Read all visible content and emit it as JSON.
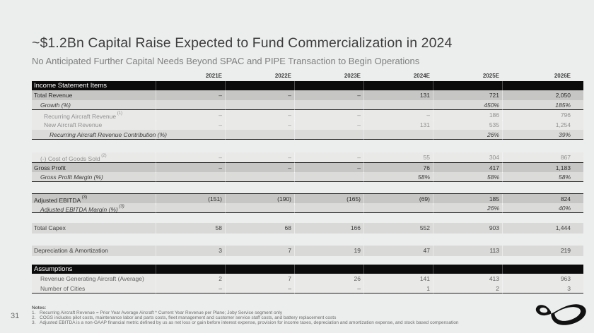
{
  "page_number": "31",
  "title": "~$1.2Bn Capital Raise Expected to Fund Commercialization in 2024",
  "subtitle": "No Anticipated Further Capital Needs Beyond SPAC and PIPE Transaction to Begin Operations",
  "colors": {
    "background": "#ECEEED",
    "section_bar": "#0B0B0B",
    "row_subtotal": "#C6C7C5",
    "row_percent": "#DBDCDA",
    "row_detail": "#E9EAE8",
    "row_plain": "#D9DAD8"
  },
  "table": {
    "column_headers": [
      "2021E",
      "2022E",
      "2023E",
      "2024E",
      "2025E",
      "2026E"
    ],
    "sections": [
      {
        "header": "Income Statement Items",
        "rows": [
          {
            "label": "Total Revenue",
            "sup": "",
            "values": [
              "–",
              "–",
              "–",
              "131",
              "721",
              "2,050"
            ],
            "style": "total",
            "indent": 0
          },
          {
            "label": "Growth (%)",
            "sup": "",
            "values": [
              "",
              "",
              "",
              "",
              "450%",
              "185%"
            ],
            "style": "pct",
            "indent": 1,
            "border_bottom": true
          },
          {
            "label": "Recurring Aircraft Revenue",
            "sup": "(1)",
            "values": [
              "–",
              "–",
              "–",
              "–",
              "186",
              "796"
            ],
            "style": "detail",
            "indent": 2
          },
          {
            "label": "New Aircraft Revenue",
            "sup": "",
            "values": [
              "–",
              "–",
              "–",
              "131",
              "535",
              "1,254"
            ],
            "style": "detail",
            "indent": 2
          },
          {
            "label": "Recurring Aircraft Revenue Contribution (%)",
            "sup": "",
            "values": [
              "",
              "",
              "",
              "",
              "26%",
              "39%"
            ],
            "style": "pct",
            "indent": 3,
            "border_bottom": true
          },
          {
            "spacer": true
          },
          {
            "label": "(-) Cost of Goods Sold",
            "sup": "(2)",
            "values": [
              "–",
              "–",
              "–",
              "55",
              "304",
              "867"
            ],
            "style": "detail",
            "indent": 1
          },
          {
            "label": "Gross Profit",
            "sup": "",
            "values": [
              "–",
              "–",
              "–",
              "76",
              "417",
              "1,183"
            ],
            "style": "total",
            "indent": 0,
            "border_top": true
          },
          {
            "label": "Gross Profit Margin (%)",
            "sup": "",
            "values": [
              "",
              "",
              "",
              "58%",
              "58%",
              "58%"
            ],
            "style": "pct",
            "indent": 1,
            "border_bottom": true
          },
          {
            "spacer": true
          },
          {
            "label": "Adjusted EBITDA",
            "sup": "(3)",
            "values": [
              "(151)",
              "(190)",
              "(165)",
              "(69)",
              "185",
              "824"
            ],
            "style": "total",
            "indent": 0,
            "border_top": true
          },
          {
            "label": "Adjusted EBITDA Margin (%)",
            "sup": "(3)",
            "values": [
              "",
              "",
              "",
              "",
              "26%",
              "40%"
            ],
            "style": "pct",
            "indent": 1,
            "border_bottom": true
          },
          {
            "spacer": true
          },
          {
            "label": "Total Capex",
            "sup": "",
            "values": [
              "58",
              "68",
              "166",
              "552",
              "903",
              "1,444"
            ],
            "style": "plain",
            "indent": 0
          },
          {
            "spacer": true
          },
          {
            "label": "Depreciation & Amortization",
            "sup": "",
            "values": [
              "3",
              "7",
              "19",
              "47",
              "113",
              "219"
            ],
            "style": "plain",
            "indent": 0
          },
          {
            "spacer": true
          }
        ]
      },
      {
        "header": "Assumptions",
        "rows": [
          {
            "label": "Revenue Generating Aircraft (Average)",
            "sup": "",
            "values": [
              "2",
              "7",
              "26",
              "141",
              "413",
              "963"
            ],
            "style": "assum",
            "indent": 1
          },
          {
            "label": "Number of Cities",
            "sup": "",
            "values": [
              "–",
              "–",
              "–",
              "1",
              "2",
              "3"
            ],
            "style": "assum",
            "indent": 1,
            "border_bottom": true
          }
        ]
      }
    ]
  },
  "notes": {
    "heading": "Notes:",
    "items": [
      "Recurring Aircraft Revenue = Prior Year Average Aircraft * Current Year Revenue per Plane; Joby Service segment only",
      "COGS includes pilot costs, maintenance labor and parts costs, fleet management and customer service staff costs, and battery replacement costs",
      "Adjusted EBITDA is a non-GAAP financial metric defined by us as net loss or gain before interest expense, provision for income taxes, depreciation and amortization expense, and stock based compensation"
    ]
  },
  "logo_name": "joby-logo"
}
